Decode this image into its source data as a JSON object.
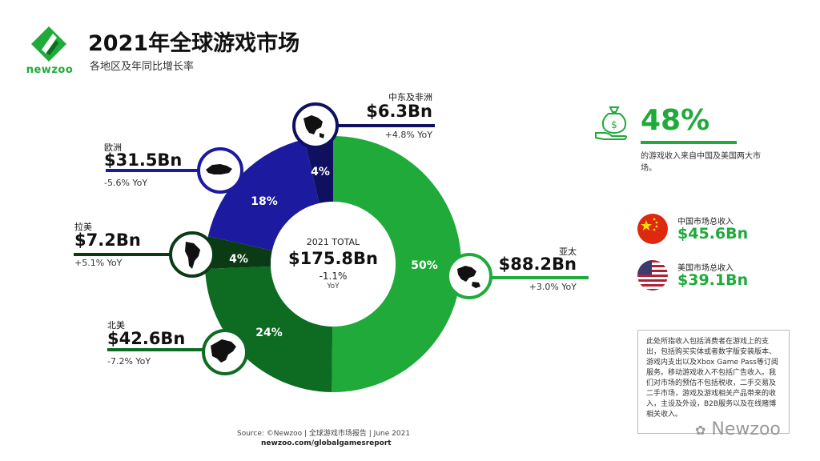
{
  "header": {
    "brand": "newzoo",
    "title": "2021年全球游戏市场",
    "subtitle": "各地区及年同比增长率"
  },
  "center": {
    "label": "2021 TOTAL",
    "value": "$175.8Bn",
    "yoy_value": "-1.1%",
    "yoy_label": "YoY"
  },
  "chart_data": {
    "type": "pie",
    "title": "2021年全球游戏市场",
    "subtitle": "各地区及年同比增长率",
    "unit": "$Bn",
    "total": 175.8,
    "total_yoy": -1.1,
    "series": [
      {
        "region": "亚太",
        "value": 88.2,
        "percent": 50,
        "value_label": "$88.2Bn",
        "percent_label": "50%",
        "yoy": 3.0,
        "yoy_label": "+3.0% YoY",
        "color": "#1faa3a"
      },
      {
        "region": "北美",
        "value": 42.6,
        "percent": 24,
        "value_label": "$42.6Bn",
        "percent_label": "24%",
        "yoy": -7.2,
        "yoy_label": "-7.2% YoY",
        "color": "#0d6b22"
      },
      {
        "region": "拉美",
        "value": 7.2,
        "percent": 4,
        "value_label": "$7.2Bn",
        "percent_label": "4%",
        "yoy": 5.1,
        "yoy_label": "+5.1% YoY",
        "color": "#0a3b14"
      },
      {
        "region": "欧洲",
        "value": 31.5,
        "percent": 18,
        "value_label": "$31.5Bn",
        "percent_label": "18%",
        "yoy": -5.6,
        "yoy_label": "-5.6% YoY",
        "color": "#1c1a9e"
      },
      {
        "region": "中东及非洲",
        "value": 6.3,
        "percent": 4,
        "value_label": "$6.3Bn",
        "percent_label": "4%",
        "yoy": 4.8,
        "yoy_label": "+4.8% YoY",
        "color": "#0f1060"
      }
    ]
  },
  "stats": {
    "percent": "48%",
    "caption": "的游戏收入来自中国及美国两大市场。",
    "china_label": "中国市场总收入",
    "china_value": "$45.6Bn",
    "us_label": "美国市场总收入",
    "us_value": "$39.1Bn"
  },
  "notes": "此处所指收入包括消费者在游戏上的支出，包括购买实体或者数字版安装版本、游戏内支出以及Xbox Game Pass等订阅服务。移动游戏收入不包括广告收入。我们对市场的预估不包括税收，二手交易及二手市场，游戏及游戏相关产品带来的收入，主设及外设，B2B服务以及在线赌博相关收入。",
  "footer": {
    "source": "Source: ©Newzoo | 全球游戏市场报告 | June 2021",
    "url": "newzoo.com/globalgamesreport",
    "watermark": "Newzoo"
  },
  "colors": {
    "brand_green": "#1faa3a",
    "dark_green": "#0d6b22",
    "darkest_green": "#0a3b14",
    "blue": "#1c1a9e",
    "navy": "#0f1060"
  }
}
